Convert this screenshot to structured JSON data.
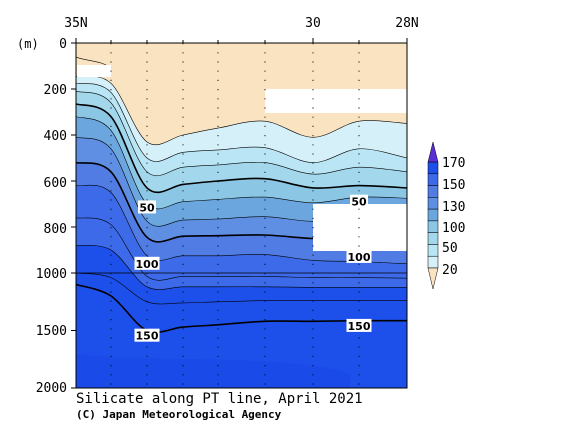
{
  "chart_data": {
    "type": "contour-section",
    "title": "Silicate along PT line, April 2021",
    "credit": "(C) Japan Meteorological Agency",
    "y_unit": "(m)",
    "x_ticks": [
      "35N",
      "30",
      "28N"
    ],
    "y_ticks_upper": [
      "0",
      "200",
      "400",
      "600",
      "800",
      "1000"
    ],
    "y_ticks_lower": [
      "1500",
      "2000"
    ],
    "y_range_upper": [
      0,
      1000
    ],
    "y_range_lower": [
      1000,
      2000
    ],
    "y_axis_reversed": true,
    "colorbar": {
      "labels": [
        "170",
        "150",
        "130",
        "100",
        "50",
        "20"
      ],
      "bands": [
        {
          "range": "< 20",
          "color": "#fae3c1"
        },
        {
          "range": "20-30",
          "color": "#d5f0f8"
        },
        {
          "range": "30-40",
          "color": "#b9e5f4"
        },
        {
          "range": "40-50",
          "color": "#a3d8ec"
        },
        {
          "range": "50-75",
          "color": "#8bc7e4"
        },
        {
          "range": "75-100",
          "color": "#6ba6df"
        },
        {
          "range": "100-115",
          "color": "#5f8fe3"
        },
        {
          "range": "115-130",
          "color": "#517ce4"
        },
        {
          "range": "130-150",
          "color": "#3d6ae8"
        },
        {
          "range": "150-170",
          "color": "#1d4fea"
        },
        {
          "range": "> 170",
          "color": "#5b2fd6"
        }
      ]
    },
    "contour_labels": [
      {
        "value": "50",
        "x_station": 2,
        "depth": 715
      },
      {
        "value": "50",
        "x_station": 7,
        "depth": 690
      },
      {
        "value": "100",
        "x_station": 2,
        "depth": 960
      },
      {
        "value": "100",
        "x_station": 7,
        "depth": 930
      },
      {
        "value": "150",
        "x_station": 2,
        "depth": 1545
      },
      {
        "value": "150",
        "x_station": 7,
        "depth": 1460
      }
    ],
    "contour_levels": [
      20,
      25,
      30,
      35,
      40,
      45,
      50,
      60,
      75,
      90,
      100,
      110,
      120,
      130,
      140,
      150
    ]
  }
}
